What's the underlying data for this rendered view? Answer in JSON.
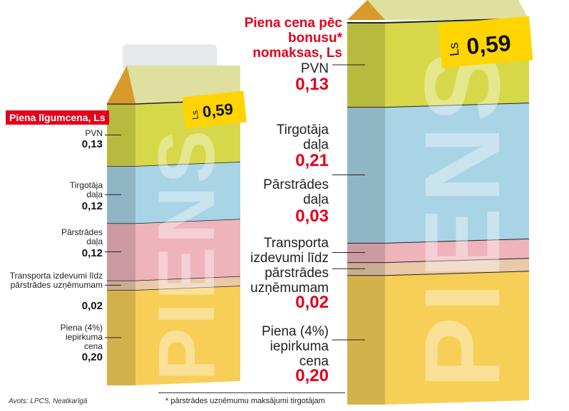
{
  "colors": {
    "accent_red": "#e3001b",
    "pvn": "#d6d84a",
    "trader": "#a8d4e6",
    "processing": "#eeb3bb",
    "transport": "#e8c9a8",
    "milk": "#f7cf57",
    "price_tag": "#ffd400"
  },
  "left": {
    "title": "Piena līgumcena, Ls",
    "tag_currency": "Ls",
    "tag_value": "0,59",
    "carton_word": "PIENS"
  },
  "right": {
    "title": "Piena cena pēc bonusu* nomaksas, Ls",
    "tag_currency": "Ls",
    "tag_value": "0,59",
    "carton_word": "PIENS"
  },
  "chart_data": [
    {
      "type": "bar",
      "stacked": true,
      "title": "Piena līgumcena, Ls",
      "total": "0,59",
      "components": [
        {
          "name": "Piena (4%) iepirkuma cena",
          "value": 0.2,
          "label": "0,20"
        },
        {
          "name": "Transporta izdevumi līdz pārstrādes uzņēmumam",
          "value": 0.02,
          "label": "0,02"
        },
        {
          "name": "Pārstrādes daļa",
          "value": 0.12,
          "label": "0,12"
        },
        {
          "name": "Tirgotāja daļa",
          "value": 0.12,
          "label": "0,12"
        },
        {
          "name": "PVN",
          "value": 0.13,
          "label": "0,13"
        }
      ]
    },
    {
      "type": "bar",
      "stacked": true,
      "title": "Piena cena pēc bonusu* nomaksas, Ls",
      "total": "0,59",
      "components": [
        {
          "name": "Piena (4%) iepirkuma cena",
          "value": 0.2,
          "label": "0,20"
        },
        {
          "name": "Transporta izdevumi līdz pārstrādes uzņēmumam",
          "value": 0.02,
          "label": "0,02"
        },
        {
          "name": "Pārstrādes daļa",
          "value": 0.03,
          "label": "0,03"
        },
        {
          "name": "Tirgotāja daļa",
          "value": 0.21,
          "label": "0,21"
        },
        {
          "name": "PVN",
          "value": 0.13,
          "label": "0,13"
        }
      ]
    }
  ],
  "source": "Avots: LPCS, Neatkarīgā",
  "footnote": "* pārstrādes uzņēmumu maksājumi tirgotājam"
}
